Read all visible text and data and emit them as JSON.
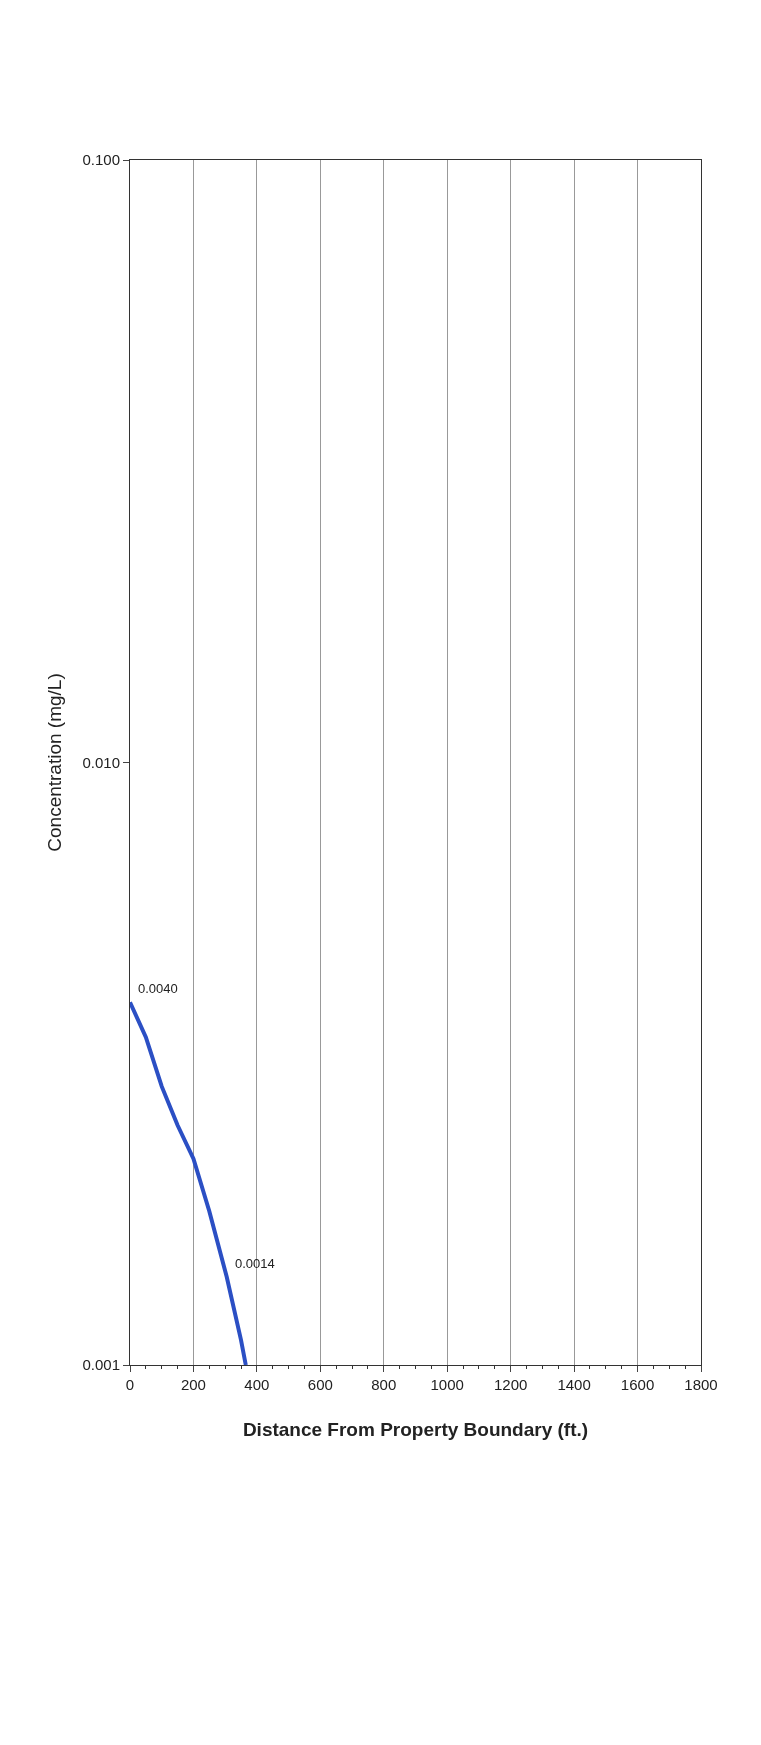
{
  "chart_data": {
    "type": "line",
    "xlabel": "Distance From Property Boundary (ft.)",
    "ylabel": "Concentration (mg/L)",
    "x": [
      0,
      50,
      100,
      150,
      200,
      250,
      305,
      350,
      365
    ],
    "series": [
      {
        "color": "#2b4fc4",
        "values": [
          0.004,
          0.0035,
          0.0029,
          0.0025,
          0.0022,
          0.0018,
          0.0014,
          0.0011,
          0.001
        ]
      }
    ],
    "annotations": [
      {
        "text": "0.0040",
        "x": 0,
        "y": 0.004
      },
      {
        "text": "0.0014",
        "x": 305,
        "y": 0.0014
      }
    ],
    "xlim": [
      0,
      1800
    ],
    "xticks": [
      0,
      200,
      400,
      600,
      800,
      1000,
      1200,
      1400,
      1600,
      1800
    ],
    "ylim": [
      0.001,
      0.1
    ],
    "yticks": [
      {
        "value": 0.1,
        "label": "0.100"
      },
      {
        "value": 0.01,
        "label": "0.010"
      },
      {
        "value": 0.001,
        "label": "0.001"
      }
    ],
    "log": "y",
    "grid": "x",
    "marker": "none",
    "line_style": "solid"
  }
}
